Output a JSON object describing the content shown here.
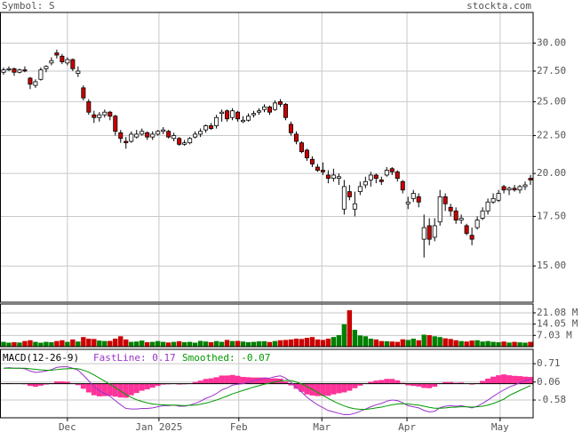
{
  "chart_data": [
    {
      "type": "candlestick",
      "title": "Symbol: S",
      "source": "stockta.com",
      "log_scale": true,
      "grid": true,
      "up_color": "#ffffff",
      "down_color": "#cc0000",
      "ylim": [
        13.4,
        33
      ],
      "yticks": [
        {
          "value": 15,
          "label": "15.00"
        },
        {
          "value": 17.5,
          "label": "17.50"
        },
        {
          "value": 20,
          "label": "20.00"
        },
        {
          "value": 22.5,
          "label": "22.50"
        },
        {
          "value": 25,
          "label": "25.00"
        },
        {
          "value": 27.5,
          "label": "27.50"
        },
        {
          "value": 30,
          "label": "30.00"
        }
      ],
      "open": [
        27.4,
        27.6,
        27.7,
        27.4,
        27.6,
        26.9,
        26.3,
        26.8,
        27.7,
        28.2,
        29.1,
        28.8,
        28.2,
        28.5,
        27.3,
        26.1,
        25.0,
        24.0,
        23.8,
        24.0,
        24.2,
        23.9,
        22.7,
        22.1,
        22.1,
        22.4,
        22.6,
        22.7,
        22.4,
        22.6,
        22.8,
        22.8,
        22.3,
        22.3,
        21.9,
        22.0,
        22.4,
        22.6,
        22.9,
        23.2,
        23.2,
        24.1,
        24.3,
        23.8,
        24.2,
        23.5,
        23.6,
        24.0,
        24.2,
        24.4,
        24.6,
        24.4,
        25.0,
        24.8,
        23.3,
        22.6,
        22.0,
        21.5,
        20.9,
        20.4,
        20.2,
        19.9,
        19.7,
        19.7,
        17.9,
        18.9,
        17.9,
        18.9,
        19.3,
        19.6,
        19.9,
        19.6,
        19.9,
        20.3,
        20.1,
        19.5,
        18.2,
        18.5,
        18.6,
        16.3,
        17.0,
        16.4,
        17.2,
        18.6,
        18.0,
        17.8,
        17.3,
        17.0,
        16.5,
        16.9,
        17.4,
        17.8,
        18.3,
        18.4,
        19.2,
        19.0,
        19.1,
        19.0,
        19.2,
        19.7
      ],
      "high": [
        27.8,
        27.9,
        27.8,
        27.7,
        27.9,
        27.0,
        26.8,
        27.8,
        28.0,
        28.7,
        29.4,
        29.0,
        28.7,
        28.6,
        27.9,
        26.3,
        25.2,
        24.3,
        24.2,
        24.4,
        24.3,
        24.0,
        22.9,
        22.4,
        22.8,
        22.9,
        23.0,
        22.8,
        22.8,
        22.9,
        23.1,
        22.9,
        22.7,
        22.4,
        22.2,
        22.4,
        22.8,
        23.0,
        23.3,
        23.4,
        24.0,
        24.4,
        24.4,
        24.5,
        24.3,
        23.9,
        24.1,
        24.3,
        24.5,
        24.8,
        24.7,
        25.1,
        25.2,
        24.9,
        23.5,
        22.8,
        22.1,
        21.6,
        21.1,
        20.6,
        20.7,
        20.2,
        20.3,
        20.0,
        19.6,
        19.3,
        18.9,
        19.5,
        19.8,
        20.1,
        20.0,
        19.8,
        20.4,
        20.4,
        20.2,
        19.6,
        18.6,
        19.0,
        18.8,
        17.6,
        17.4,
        17.4,
        19.0,
        18.8,
        18.2,
        18.0,
        17.6,
        17.1,
        16.9,
        17.5,
        18.0,
        18.5,
        18.8,
        19.0,
        19.3,
        19.2,
        19.3,
        19.3,
        19.5,
        19.9
      ],
      "low": [
        27.2,
        27.5,
        27.1,
        27.3,
        27.4,
        26.0,
        26.1,
        26.7,
        27.4,
        28.0,
        28.6,
        28.1,
        28.0,
        27.5,
        27.0,
        25.1,
        24.0,
        23.4,
        23.5,
        23.8,
        23.6,
        22.5,
        22.0,
        21.6,
        22.0,
        22.3,
        22.5,
        22.2,
        22.2,
        22.5,
        22.6,
        22.3,
        22.1,
        21.8,
        21.8,
        21.9,
        22.3,
        22.4,
        22.7,
        22.9,
        23.0,
        23.5,
        23.5,
        23.6,
        23.5,
        23.4,
        23.5,
        23.8,
        24.0,
        24.2,
        24.0,
        24.3,
        24.6,
        23.6,
        22.5,
        21.9,
        21.3,
        20.8,
        20.4,
        20.1,
        19.9,
        19.4,
        19.5,
        19.3,
        17.6,
        18.4,
        17.5,
        18.7,
        19.1,
        19.2,
        19.4,
        19.3,
        19.8,
        19.9,
        19.5,
        18.8,
        17.9,
        18.3,
        18.0,
        15.4,
        16.0,
        16.2,
        17.0,
        17.8,
        17.5,
        17.1,
        17.1,
        16.5,
        16.0,
        16.8,
        17.3,
        17.6,
        18.2,
        18.3,
        18.8,
        18.7,
        18.9,
        18.8,
        19.0,
        19.3
      ],
      "close": [
        27.6,
        27.7,
        27.4,
        27.6,
        27.5,
        26.4,
        26.6,
        27.6,
        27.9,
        28.4,
        28.9,
        28.3,
        28.5,
        27.7,
        27.5,
        25.3,
        24.2,
        23.8,
        24.0,
        24.2,
        23.9,
        22.8,
        22.3,
        22.0,
        22.6,
        22.6,
        22.8,
        22.4,
        22.6,
        22.8,
        22.9,
        22.4,
        22.5,
        21.9,
        22.0,
        22.3,
        22.6,
        22.8,
        23.2,
        23.0,
        23.8,
        24.2,
        23.7,
        24.3,
        23.7,
        23.6,
        23.9,
        24.1,
        24.3,
        24.6,
        24.2,
        24.9,
        24.8,
        23.8,
        22.7,
        22.1,
        21.4,
        21.0,
        20.6,
        20.2,
        20.1,
        19.7,
        19.9,
        19.8,
        19.2,
        18.6,
        18.2,
        19.2,
        19.5,
        19.9,
        19.7,
        19.5,
        20.2,
        20.1,
        19.7,
        19.0,
        18.3,
        18.8,
        18.3,
        16.9,
        16.3,
        17.0,
        18.6,
        18.2,
        17.8,
        17.3,
        17.4,
        16.6,
        16.3,
        17.3,
        17.8,
        18.3,
        18.5,
        18.8,
        19.0,
        19.1,
        19.0,
        19.2,
        19.3,
        19.6
      ]
    },
    {
      "type": "volume",
      "grid": true,
      "up_color": "#008000",
      "down_color": "#cc0000",
      "ylim": [
        0,
        26.6
      ],
      "yticks": [
        {
          "value": 7.03,
          "label": "7.03 M"
        },
        {
          "value": 14.05,
          "label": "14.05 M"
        },
        {
          "value": 21.08,
          "label": "21.08 M"
        }
      ],
      "values": [
        3.0,
        2.5,
        2.8,
        2.6,
        3.5,
        4.0,
        3.0,
        2.5,
        3.0,
        2.8,
        3.5,
        4.0,
        3.0,
        4.5,
        3.2,
        6.0,
        5.0,
        4.8,
        3.8,
        3.5,
        3.6,
        5.0,
        6.5,
        4.5,
        3.0,
        3.2,
        3.8,
        2.8,
        3.0,
        3.5,
        3.0,
        2.6,
        3.0,
        3.4,
        2.8,
        3.0,
        2.5,
        3.6,
        3.2,
        2.8,
        3.5,
        3.0,
        4.2,
        3.5,
        3.6,
        3.2,
        2.8,
        3.0,
        3.3,
        3.4,
        2.9,
        3.5,
        4.0,
        4.2,
        4.5,
        5.0,
        4.8,
        5.5,
        6.0,
        4.5,
        4.2,
        5.0,
        6.0,
        7.2,
        14.0,
        22.7,
        10.5,
        7.0,
        6.5,
        5.0,
        4.5,
        3.5,
        3.4,
        3.2,
        3.0,
        4.6,
        4.2,
        5.0,
        4.0,
        7.5,
        7.2,
        6.5,
        6.0,
        5.2,
        4.8,
        4.0,
        3.5,
        3.2,
        3.8,
        4.0,
        3.2,
        3.5,
        3.0,
        2.8,
        3.2,
        2.6,
        3.0,
        2.7,
        2.5,
        3.0
      ]
    },
    {
      "type": "macd",
      "title": "MACD(12-26-9)",
      "grid": true,
      "ylim": [
        -1.21,
        1.22
      ],
      "yticks": [
        -0.58,
        0.06,
        0.71
      ],
      "xlim": [
        -0.5,
        99.5
      ],
      "xticks": [
        {
          "value": 12,
          "label": "Dec"
        },
        {
          "value": 29.2,
          "label": "Jan 2025"
        },
        {
          "value": 44.2,
          "label": "Feb"
        },
        {
          "value": 59.8,
          "label": "Mar"
        },
        {
          "value": 75.8,
          "label": "Apr"
        },
        {
          "value": 93.3,
          "label": "May"
        }
      ],
      "histogram": {
        "color": "#ff3399",
        "values": [
          0.0,
          0.02,
          0.0,
          0.0,
          -0.02,
          -0.08,
          -0.11,
          -0.07,
          -0.03,
          0.02,
          0.08,
          0.08,
          0.07,
          0.01,
          -0.05,
          -0.18,
          -0.31,
          -0.41,
          -0.45,
          -0.44,
          -0.43,
          -0.46,
          -0.49,
          -0.5,
          -0.41,
          -0.33,
          -0.25,
          -0.2,
          -0.14,
          -0.08,
          -0.03,
          -0.02,
          0.0,
          -0.03,
          -0.02,
          0.01,
          0.06,
          0.11,
          0.17,
          0.19,
          0.23,
          0.29,
          0.29,
          0.31,
          0.28,
          0.24,
          0.23,
          0.22,
          0.22,
          0.22,
          0.18,
          0.19,
          0.18,
          0.08,
          -0.06,
          -0.18,
          -0.29,
          -0.38,
          -0.42,
          -0.44,
          -0.43,
          -0.43,
          -0.38,
          -0.34,
          -0.31,
          -0.25,
          -0.16,
          -0.07,
          0.01,
          0.07,
          0.11,
          0.13,
          0.17,
          0.17,
          0.12,
          0.03,
          -0.06,
          -0.08,
          -0.1,
          -0.15,
          -0.16,
          -0.11,
          0.02,
          0.06,
          0.06,
          0.03,
          0.04,
          0.0,
          -0.03,
          0.02,
          0.1,
          0.18,
          0.25,
          0.3,
          0.33,
          0.3,
          0.28,
          0.27,
          0.25,
          0.24
        ]
      },
      "series": [
        {
          "name": "FastLine: 0.17",
          "color": "#9933cc",
          "values": [
            0.55,
            0.57,
            0.55,
            0.55,
            0.53,
            0.45,
            0.4,
            0.42,
            0.45,
            0.5,
            0.58,
            0.6,
            0.6,
            0.55,
            0.48,
            0.3,
            0.1,
            -0.1,
            -0.25,
            -0.35,
            -0.45,
            -0.6,
            -0.75,
            -0.88,
            -0.9,
            -0.9,
            -0.88,
            -0.88,
            -0.86,
            -0.82,
            -0.78,
            -0.78,
            -0.76,
            -0.8,
            -0.8,
            -0.76,
            -0.7,
            -0.62,
            -0.52,
            -0.45,
            -0.35,
            -0.22,
            -0.15,
            -0.05,
            -0.02,
            0.0,
            0.05,
            0.1,
            0.15,
            0.2,
            0.2,
            0.25,
            0.28,
            0.2,
            0.05,
            -0.12,
            -0.3,
            -0.48,
            -0.62,
            -0.75,
            -0.85,
            -0.95,
            -1.0,
            -1.05,
            -1.1,
            -1.1,
            -1.05,
            -0.98,
            -0.9,
            -0.82,
            -0.75,
            -0.7,
            -0.62,
            -0.58,
            -0.6,
            -0.68,
            -0.78,
            -0.82,
            -0.86,
            -0.95,
            -1.0,
            -0.98,
            -0.85,
            -0.8,
            -0.78,
            -0.8,
            -0.78,
            -0.82,
            -0.86,
            -0.8,
            -0.7,
            -0.58,
            -0.45,
            -0.33,
            -0.22,
            -0.12,
            -0.05,
            0.03,
            0.1,
            0.17
          ]
        },
        {
          "name": "Smoothed: -0.07",
          "color": "#009900",
          "values": [
            0.55,
            0.55,
            0.55,
            0.55,
            0.55,
            0.53,
            0.51,
            0.49,
            0.48,
            0.48,
            0.5,
            0.52,
            0.53,
            0.54,
            0.53,
            0.48,
            0.41,
            0.31,
            0.2,
            0.09,
            -0.02,
            -0.14,
            -0.26,
            -0.38,
            -0.49,
            -0.57,
            -0.63,
            -0.68,
            -0.72,
            -0.74,
            -0.75,
            -0.76,
            -0.76,
            -0.77,
            -0.78,
            -0.77,
            -0.76,
            -0.73,
            -0.69,
            -0.64,
            -0.58,
            -0.51,
            -0.44,
            -0.36,
            -0.3,
            -0.24,
            -0.18,
            -0.12,
            -0.07,
            -0.02,
            0.02,
            0.06,
            0.1,
            0.12,
            0.11,
            0.06,
            -0.01,
            -0.1,
            -0.2,
            -0.31,
            -0.42,
            -0.52,
            -0.62,
            -0.71,
            -0.79,
            -0.85,
            -0.89,
            -0.91,
            -0.91,
            -0.89,
            -0.86,
            -0.83,
            -0.79,
            -0.75,
            -0.72,
            -0.71,
            -0.72,
            -0.74,
            -0.76,
            -0.8,
            -0.84,
            -0.87,
            -0.87,
            -0.86,
            -0.84,
            -0.83,
            -0.82,
            -0.82,
            -0.83,
            -0.82,
            -0.8,
            -0.76,
            -0.7,
            -0.63,
            -0.55,
            -0.42,
            -0.33,
            -0.24,
            -0.15,
            -0.07
          ]
        }
      ]
    }
  ]
}
